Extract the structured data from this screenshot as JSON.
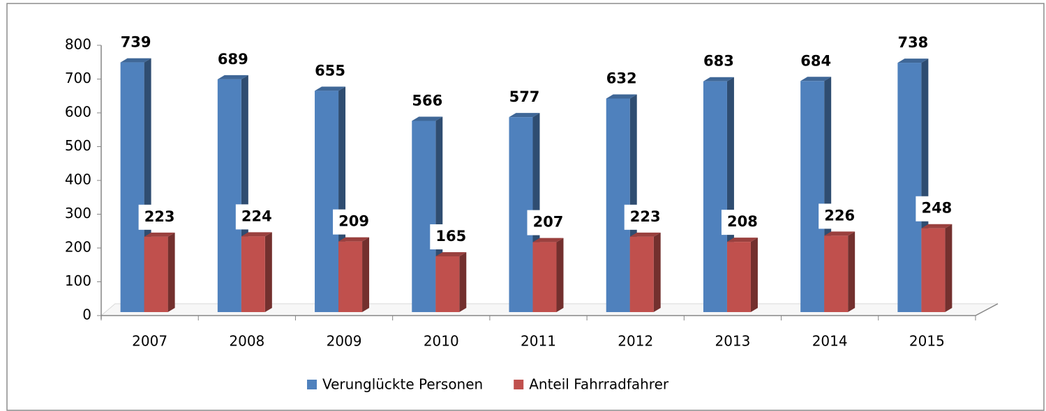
{
  "chart_data": {
    "type": "bar3d",
    "categories": [
      "2007",
      "2008",
      "2009",
      "2010",
      "2011",
      "2012",
      "2013",
      "2014",
      "2015"
    ],
    "series": [
      {
        "name": "Verunglückte Personen",
        "color": "#4f81bd",
        "values": [
          739,
          689,
          655,
          566,
          577,
          632,
          683,
          684,
          738
        ]
      },
      {
        "name": "Anteil Fahrradfahrer",
        "color": "#c0504d",
        "values": [
          223,
          224,
          209,
          165,
          207,
          223,
          208,
          226,
          248
        ]
      }
    ],
    "ylim": [
      0,
      800
    ],
    "yticks": [
      0,
      100,
      200,
      300,
      400,
      500,
      600,
      700,
      800
    ],
    "legend": "bottom"
  }
}
